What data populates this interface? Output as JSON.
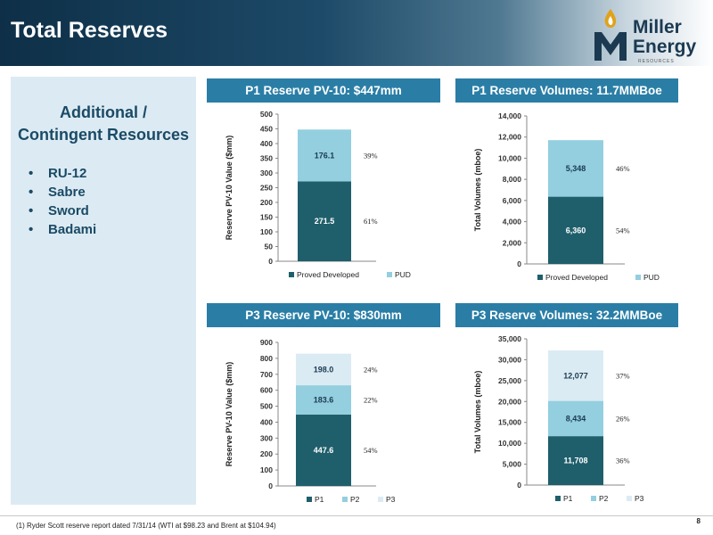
{
  "header": {
    "title": "Total Reserves"
  },
  "logo": {
    "line1": "Miller",
    "line2": "Energy",
    "sub": "RESOURCES"
  },
  "sidebar": {
    "title_line1": "Additional /",
    "title_line2": "Contingent Resources",
    "items": [
      "RU-12",
      "Sabre",
      "Sword",
      "Badami"
    ]
  },
  "footnote": "(1)    Ryder Scott reserve report dated 7/31/14 (WTI at $98.23 and Brent at $104.94)",
  "page_number": "8",
  "colors": {
    "series1": "#1f5f6b",
    "series2": "#93cfdf",
    "series3": "#dbebf3",
    "banner": "#2a7ea6",
    "sidebar_bg": "#dcebf3"
  },
  "chart_data": [
    {
      "type": "bar",
      "title": "P1 Reserve PV-10: $447mm",
      "ylabel": "Reserve PV-10 Value ($mm)",
      "ylim": [
        0,
        500
      ],
      "yticks": [
        "0",
        "50",
        "100",
        "150",
        "200",
        "250",
        "300",
        "350",
        "400",
        "450",
        "500"
      ],
      "stacked": true,
      "series": [
        {
          "name": "Proved Developed",
          "values": [
            271.5
          ],
          "labels": [
            "271.5"
          ],
          "pct": "61%"
        },
        {
          "name": "PUD",
          "values": [
            176.1
          ],
          "labels": [
            "176.1"
          ],
          "pct": "39%"
        }
      ]
    },
    {
      "type": "bar",
      "title": "P1 Reserve Volumes: 11.7MMBoe",
      "ylabel": "Total Volumes (mboe)",
      "ylim": [
        0,
        14000
      ],
      "yticks": [
        "0",
        "2,000",
        "4,000",
        "6,000",
        "8,000",
        "10,000",
        "12,000",
        "14,000"
      ],
      "stacked": true,
      "series": [
        {
          "name": "Proved Developed",
          "values": [
            6360
          ],
          "labels": [
            "6,360"
          ],
          "pct": "54%"
        },
        {
          "name": "PUD",
          "values": [
            5348
          ],
          "labels": [
            "5,348"
          ],
          "pct": "46%"
        }
      ]
    },
    {
      "type": "bar",
      "title": "P3 Reserve PV-10: $830mm",
      "ylabel": "Reserve PV-10 Value ($mm)",
      "ylim": [
        0,
        900
      ],
      "yticks": [
        "0",
        "100",
        "200",
        "300",
        "400",
        "500",
        "600",
        "700",
        "800",
        "900"
      ],
      "stacked": true,
      "series": [
        {
          "name": "P1",
          "values": [
            447.6
          ],
          "labels": [
            "447.6"
          ],
          "pct": "54%"
        },
        {
          "name": "P2",
          "values": [
            183.6
          ],
          "labels": [
            "183.6"
          ],
          "pct": "22%"
        },
        {
          "name": "P3",
          "values": [
            198.0
          ],
          "labels": [
            "198.0"
          ],
          "pct": "24%"
        }
      ]
    },
    {
      "type": "bar",
      "title": "P3 Reserve Volumes: 32.2MMBoe",
      "ylabel": "Total Volumes (mboe)",
      "ylim": [
        0,
        35000
      ],
      "yticks": [
        "0",
        "5,000",
        "10,000",
        "15,000",
        "20,000",
        "25,000",
        "30,000",
        "35,000"
      ],
      "stacked": true,
      "series": [
        {
          "name": "P1",
          "values": [
            11708
          ],
          "labels": [
            "11,708"
          ],
          "pct": "36%"
        },
        {
          "name": "P2",
          "values": [
            8434
          ],
          "labels": [
            "8,434"
          ],
          "pct": "26%"
        },
        {
          "name": "P3",
          "values": [
            12077
          ],
          "labels": [
            "12,077"
          ],
          "pct": "37%"
        }
      ]
    }
  ]
}
